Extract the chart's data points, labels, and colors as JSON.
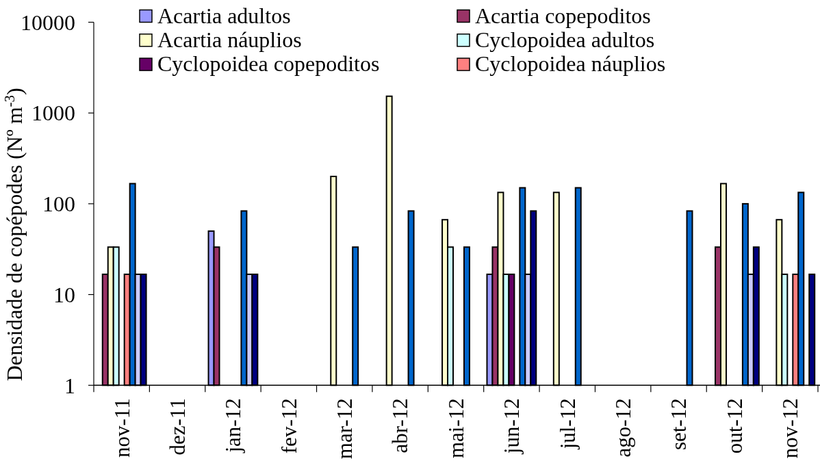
{
  "chart_data": {
    "type": "bar",
    "ylabel": "Densidade de copépodes (Nº m$^{-3}$)",
    "categories": [
      "nov-11",
      "dez-11",
      "jan-12",
      "fev-12",
      "mar-12",
      "abr-12",
      "mai-12",
      "jun-12",
      "jul-12",
      "ago-12",
      "set-12",
      "out-12",
      "nov-12"
    ],
    "series": [
      {
        "name": "Acartia adultos",
        "color": "#9999ff",
        "values": [
          null,
          null,
          50,
          null,
          null,
          null,
          null,
          16.7,
          null,
          null,
          null,
          null,
          null
        ]
      },
      {
        "name": "Acartia copepoditos",
        "color": "#993366",
        "values": [
          16.7,
          null,
          33.3,
          null,
          null,
          null,
          null,
          33.3,
          null,
          null,
          null,
          33.3,
          null
        ]
      },
      {
        "name": "Acartia náuplios",
        "color": "#ffffcc",
        "values": [
          33.3,
          null,
          null,
          null,
          200,
          1530,
          66.7,
          133.3,
          133.3,
          null,
          null,
          166.7,
          66.7
        ]
      },
      {
        "name": "Cyclopoidea adultos",
        "color": "#ccffff",
        "values": [
          33.3,
          null,
          null,
          null,
          null,
          null,
          33.3,
          16.7,
          null,
          null,
          null,
          null,
          16.7
        ]
      },
      {
        "name": "Cyclopoidea copepoditos",
        "color": "#660066",
        "values": [
          null,
          null,
          null,
          null,
          null,
          null,
          null,
          16.7,
          null,
          null,
          null,
          null,
          null
        ]
      },
      {
        "name": "Cyclopoidea náuplios",
        "color": "#ff8080",
        "values": [
          16.7,
          null,
          null,
          null,
          null,
          null,
          null,
          null,
          null,
          null,
          null,
          null,
          16.7
        ]
      },
      {
        "color": "#0066cc",
        "values": [
          166.7,
          null,
          83.3,
          null,
          33.3,
          83.3,
          33.3,
          150,
          150,
          null,
          83.3,
          100,
          133.3
        ]
      },
      {
        "color": "#ccccff",
        "values": [
          16.7,
          null,
          16.7,
          null,
          null,
          null,
          null,
          16.7,
          null,
          null,
          null,
          16.7,
          null
        ]
      },
      {
        "color": "#000080",
        "values": [
          16.7,
          null,
          16.7,
          null,
          null,
          null,
          null,
          83.3,
          null,
          null,
          null,
          33.3,
          16.7
        ]
      }
    ],
    "ylim": [
      1,
      10000
    ],
    "yticks": [
      1,
      10,
      100,
      1000,
      10000
    ],
    "log": true,
    "legend": "top"
  }
}
